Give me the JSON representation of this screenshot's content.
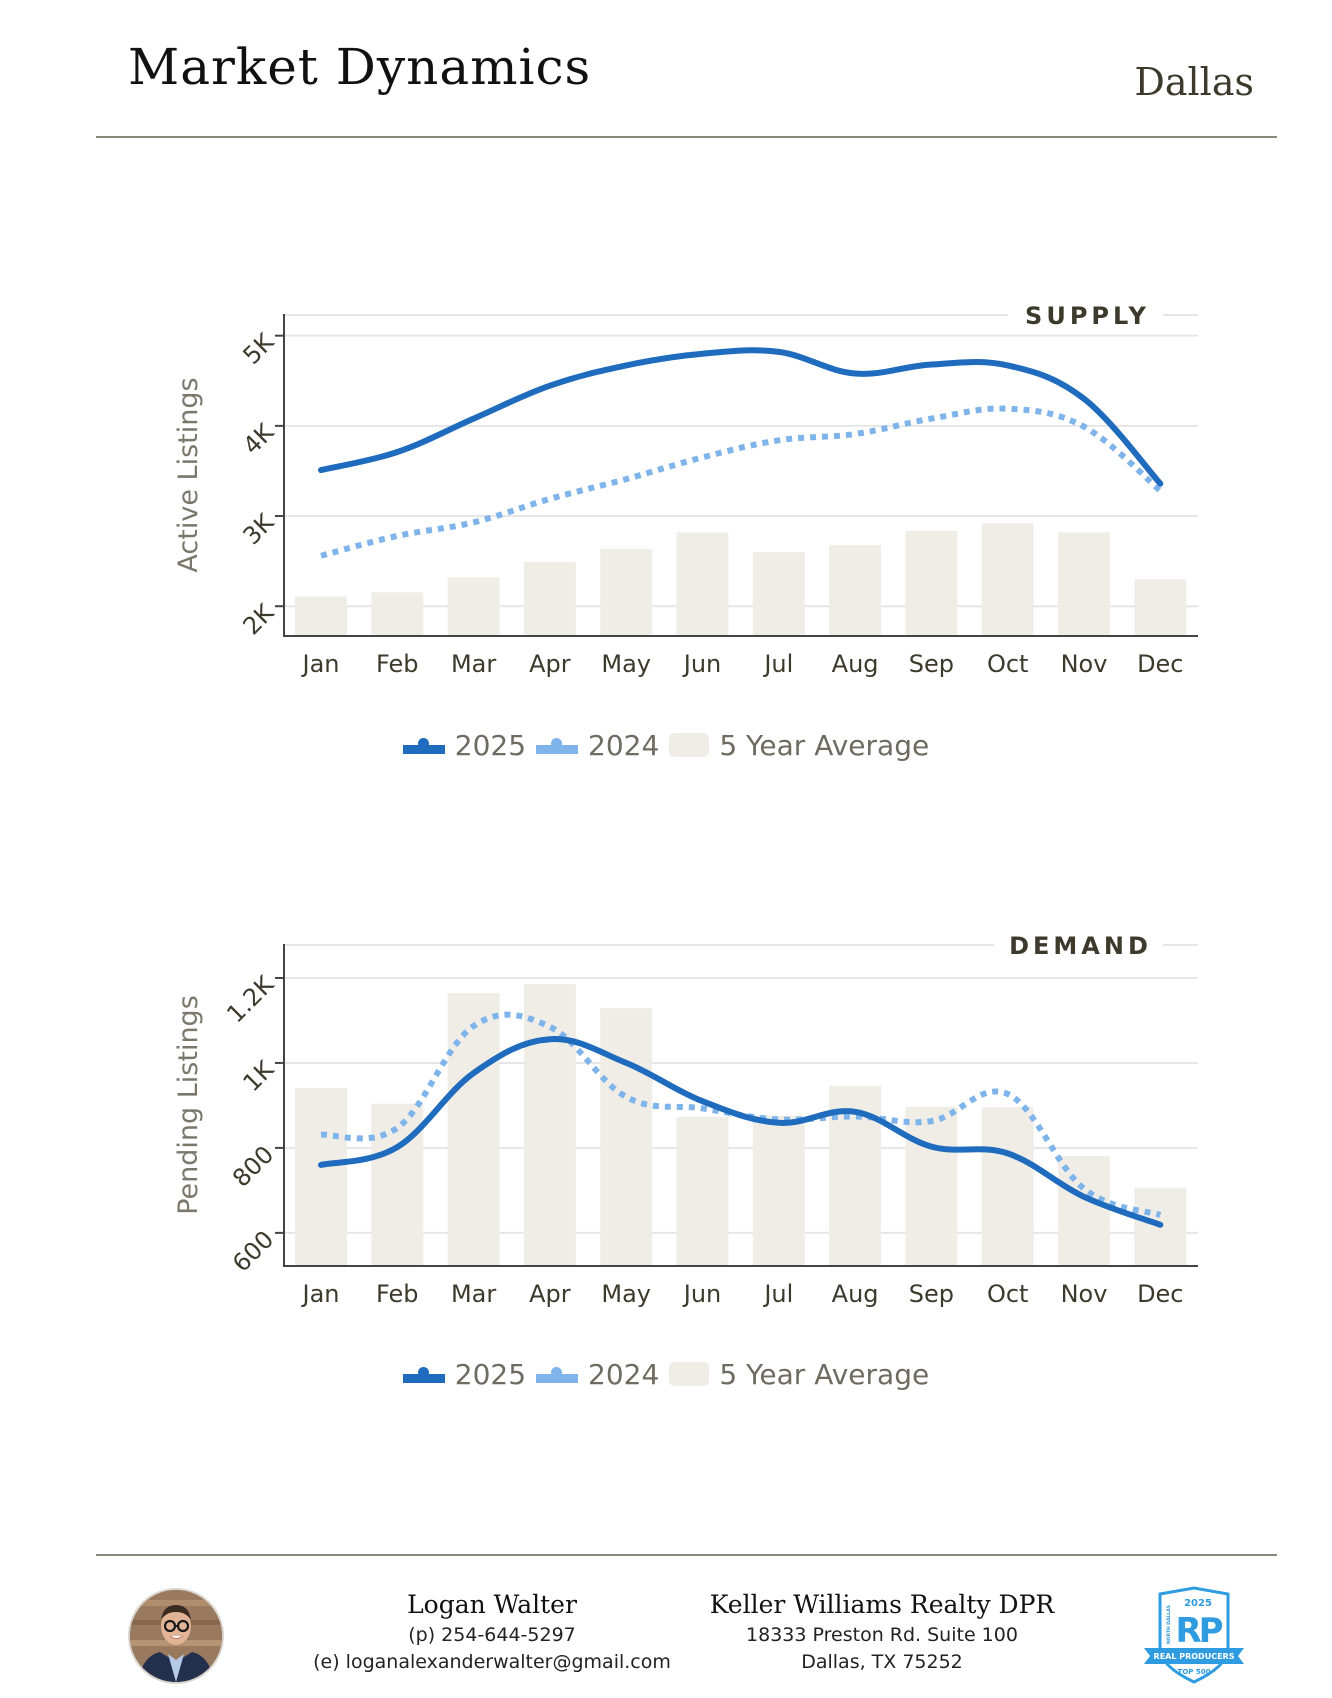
{
  "header": {
    "title": "Market Dynamics",
    "city": "Dallas"
  },
  "colors": {
    "series_2025": "#1f6bbd",
    "series_2024": "#7fb4ea",
    "five_year_avg": "#f0ede6",
    "grid": "#e6e6e6",
    "axis": "#444444",
    "rule": "#8a8878"
  },
  "chart_data": [
    {
      "id": "supply",
      "type": "bar+line",
      "title": "SUPPLY",
      "xlabel": "",
      "ylabel": "Active Listings",
      "categories": [
        "Jan",
        "Feb",
        "Mar",
        "Apr",
        "May",
        "Jun",
        "Jul",
        "Aug",
        "Sep",
        "Oct",
        "Nov",
        "Dec"
      ],
      "yticks": [
        2000,
        3000,
        4000,
        5000
      ],
      "ytick_labels": [
        "2K",
        "3K",
        "4K",
        "5K"
      ],
      "ylim": [
        1670,
        5240
      ],
      "grid": true,
      "legend_position": "bottom-center",
      "series": [
        {
          "name": "2025",
          "type": "line",
          "style": "solid",
          "values": [
            3510,
            3710,
            4080,
            4445,
            4670,
            4800,
            4820,
            4580,
            4680,
            4670,
            4300,
            3360
          ]
        },
        {
          "name": "2024",
          "type": "line",
          "style": "dotted",
          "values": [
            2560,
            2780,
            2930,
            3190,
            3410,
            3650,
            3840,
            3910,
            4080,
            4190,
            3990,
            3280
          ]
        },
        {
          "name": "5 Year Average",
          "type": "bar",
          "values": [
            2110,
            2155,
            2320,
            2490,
            2635,
            2820,
            2600,
            2680,
            2835,
            2920,
            2820,
            2300
          ]
        }
      ]
    },
    {
      "id": "demand",
      "type": "bar+line",
      "title": "DEMAND",
      "xlabel": "",
      "ylabel": "Pending Listings",
      "categories": [
        "Jan",
        "Feb",
        "Mar",
        "Apr",
        "May",
        "Jun",
        "Jul",
        "Aug",
        "Sep",
        "Oct",
        "Nov",
        "Dec"
      ],
      "yticks": [
        600,
        800,
        1000,
        1200
      ],
      "ytick_labels": [
        "600",
        "800",
        "1K",
        "1.2K"
      ],
      "ylim": [
        522,
        1280
      ],
      "grid": true,
      "legend_position": "bottom-center",
      "series": [
        {
          "name": "2025",
          "type": "line",
          "style": "solid",
          "values": [
            760,
            802,
            976,
            1056,
            1000,
            910,
            859,
            885,
            803,
            787,
            685,
            619
          ]
        },
        {
          "name": "2024",
          "type": "line",
          "style": "dotted",
          "values": [
            831,
            847,
            1087,
            1085,
            920,
            893,
            867,
            874,
            863,
            927,
            704,
            642
          ]
        },
        {
          "name": "5 Year Average",
          "type": "bar",
          "values": [
            941,
            904,
            1165,
            1186,
            1129,
            873,
            876,
            946,
            897,
            896,
            781,
            706
          ]
        }
      ]
    }
  ],
  "legend": {
    "items": [
      {
        "label": "2025",
        "icon": "line-marker-icon"
      },
      {
        "label": "2024",
        "icon": "line-marker-icon"
      },
      {
        "label": "5 Year Average",
        "icon": "bar-swatch-icon"
      }
    ]
  },
  "footer": {
    "agent": {
      "name": "Logan Walter",
      "phone": "(p) 254-644-5297",
      "email": "(e) loganalexanderwalter@gmail.com",
      "avatar_icon": "agent-photo"
    },
    "brokerage": {
      "name": "Keller Williams Realty DPR",
      "address_line1": "18333 Preston Rd. Suite 100",
      "address_line2": "Dallas, TX 75252"
    },
    "badge": {
      "year": "2025",
      "monogram": "RP",
      "ribbon": "REAL PRODUCERS",
      "rank": "TOP 500",
      "side_text": "NORTH DALLAS"
    }
  }
}
